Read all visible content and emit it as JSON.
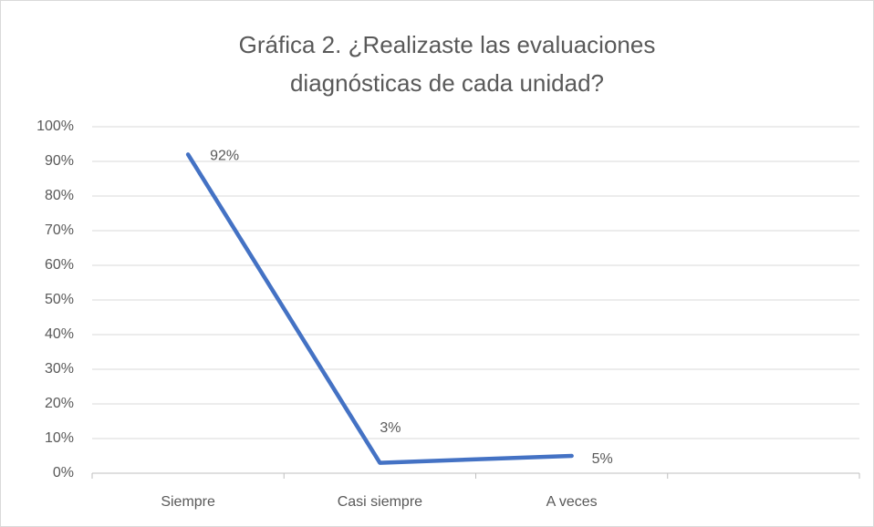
{
  "chart_data": {
    "type": "line",
    "title": "Gráfica 2. ¿Realizaste las evaluaciones diagnósticas de cada unidad?",
    "categories": [
      "Siempre",
      "Casi siempre",
      "A veces",
      null
    ],
    "values": [
      92,
      3,
      5,
      null
    ],
    "value_labels": [
      "92%",
      "3%",
      "5%",
      null
    ],
    "color": "#4472c4",
    "ylim": [
      0,
      100
    ],
    "yticks": [
      {
        "value": 0,
        "label": "0%"
      },
      {
        "value": 10,
        "label": "10%"
      },
      {
        "value": 20,
        "label": "20%"
      },
      {
        "value": 30,
        "label": "30%"
      },
      {
        "value": 40,
        "label": "40%"
      },
      {
        "value": 50,
        "label": "50%"
      },
      {
        "value": 60,
        "label": "60%"
      },
      {
        "value": 70,
        "label": "70%"
      },
      {
        "value": 80,
        "label": "80%"
      },
      {
        "value": 90,
        "label": "90%"
      },
      {
        "value": 100,
        "label": "100%"
      }
    ],
    "grid": true
  }
}
